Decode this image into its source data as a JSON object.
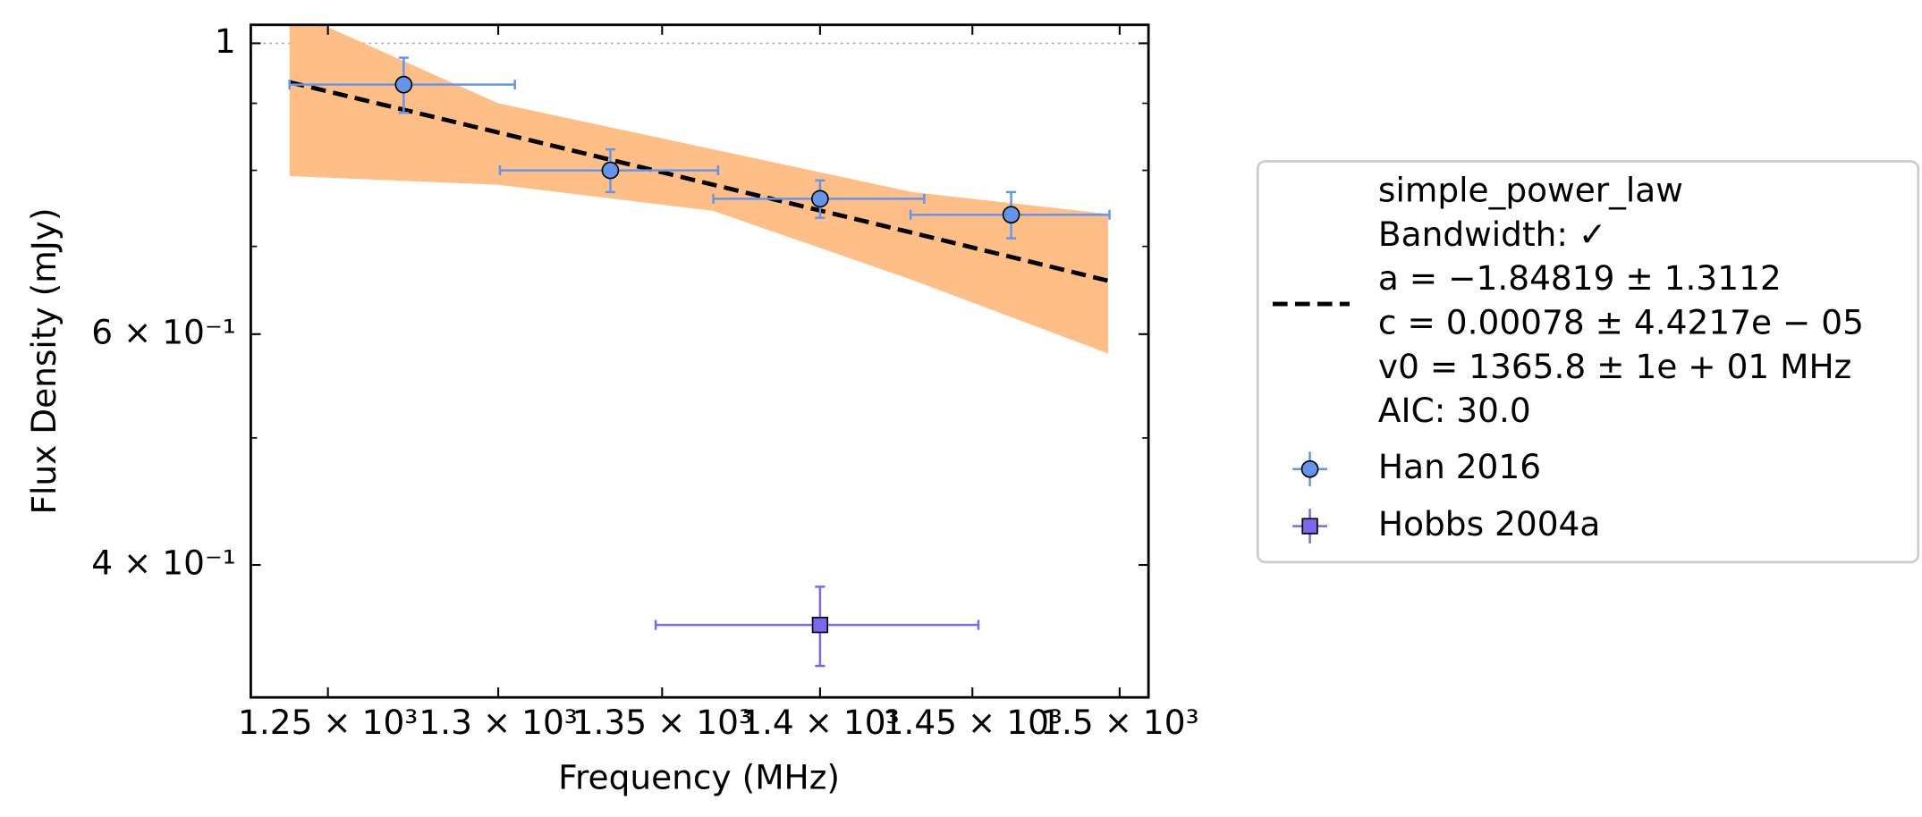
{
  "chart_data": {
    "type": "errorbar-fit",
    "x_label": "Frequency (MHz)",
    "y_label": "Flux Density (mJy)",
    "xscale": "log",
    "yscale": "log",
    "xlim": [
      1228,
      1510
    ],
    "ylim": [
      0.317,
      1.033
    ],
    "xticks": [
      {
        "value": 1250,
        "label": "1.25 × 10³"
      },
      {
        "value": 1300,
        "label": "1.3 × 10³"
      },
      {
        "value": 1350,
        "label": "1.35 × 10³"
      },
      {
        "value": 1400,
        "label": "1.4 × 10³"
      },
      {
        "value": 1450,
        "label": "1.45 × 10³"
      },
      {
        "value": 1500,
        "label": "1.5 × 10³"
      }
    ],
    "yticks": [
      1,
      {
        "value": 0.6,
        "label": "6 × 10⁻¹"
      },
      {
        "value": 0.4,
        "label": "4 × 10⁻¹"
      }
    ],
    "yminorticks": [
      0.9,
      0.8,
      0.7,
      0.5
    ],
    "reference_line": 1,
    "legend": "right-outside",
    "fit": {
      "name": "simple_power_law",
      "color": "#000000",
      "details": [
        "Bandwidth: ✓",
        "a = −1.84819 ± 1.3112",
        "c = 0.00078 ± 4.4217e − 05",
        "v0 = 1365.8 ± 1e + 01 MHz",
        "AIC: 30.0"
      ],
      "x": [
        1239,
        1300,
        1366,
        1430,
        1496
      ],
      "values": [
        0.934,
        0.855,
        0.78,
        0.717,
        0.659
      ],
      "band_upper": [
        1.06,
        0.9,
        0.83,
        0.77,
        0.741
      ],
      "band_lower": [
        0.792,
        0.78,
        0.745,
        0.66,
        0.58
      ],
      "band_color": "#ffbe85"
    },
    "series": [
      {
        "name": "Han 2016",
        "marker": "circle",
        "color": "#6495ed",
        "x": [
          1272,
          1334,
          1400,
          1463
        ],
        "values": [
          0.93,
          0.8,
          0.761,
          0.74
        ],
        "xerr": [
          33,
          33.5,
          34,
          33.5
        ],
        "yerr": [
          0.045,
          0.03,
          0.025,
          0.03
        ]
      },
      {
        "name": "Hobbs 2004a",
        "marker": "square",
        "color": "#7b68ee",
        "x": [
          1400
        ],
        "values": [
          0.36
        ],
        "xerr": [
          52
        ],
        "yerr": [
          0.025
        ]
      }
    ]
  }
}
